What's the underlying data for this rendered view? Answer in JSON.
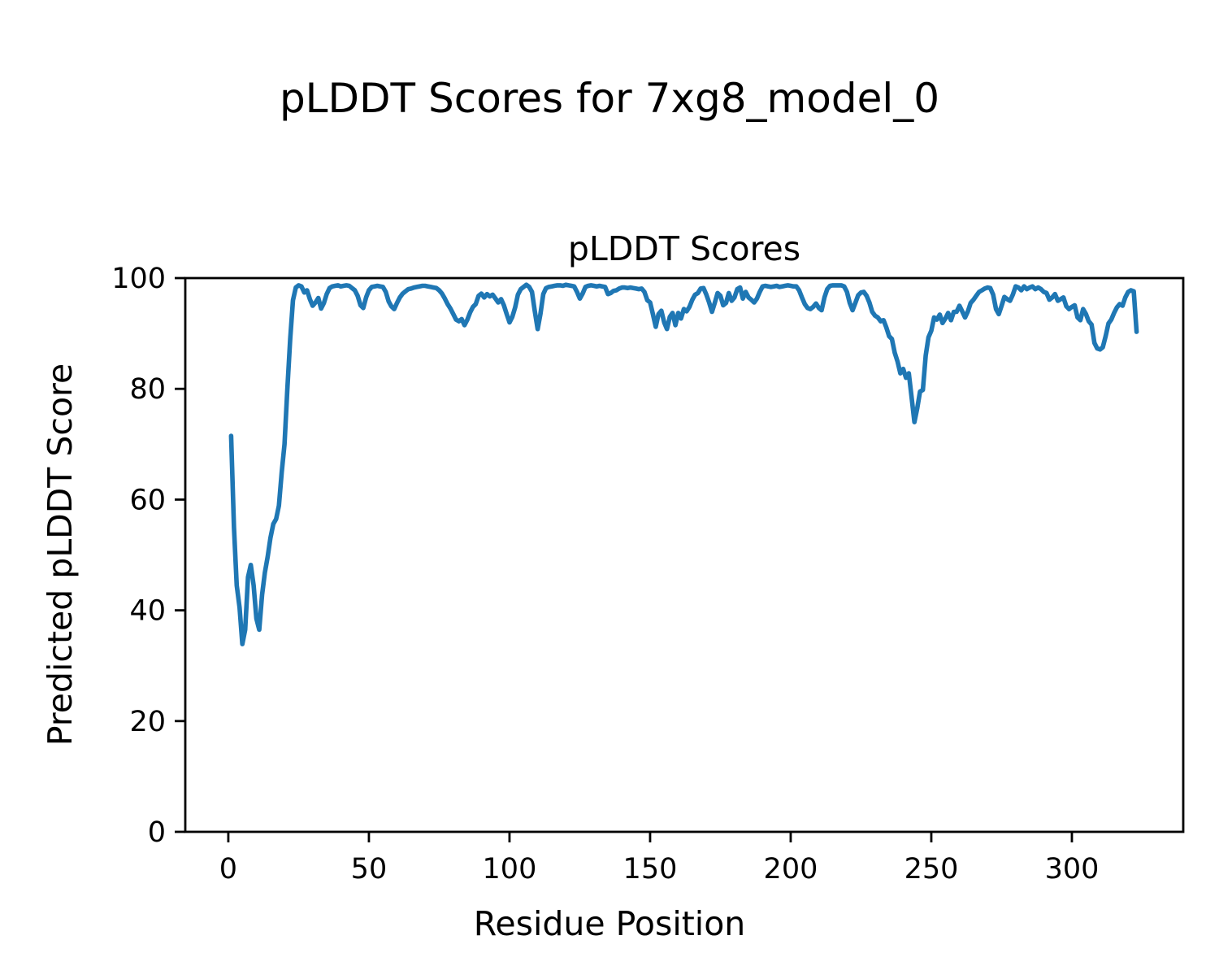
{
  "figure_title": "pLDDT Scores for 7xg8_model_0",
  "chart_data": {
    "type": "line",
    "title": "pLDDT Scores",
    "xlabel": "Residue Position",
    "ylabel": "Predicted pLDDT Score",
    "xlim": [
      -15.3,
      339.6
    ],
    "ylim": [
      0,
      100
    ],
    "xticks": [
      0,
      50,
      100,
      150,
      200,
      250,
      300
    ],
    "yticks": [
      0,
      20,
      40,
      60,
      80,
      100
    ],
    "grid": false,
    "legend": "none",
    "line_color": "#1f77b4",
    "series": [
      {
        "name": "pLDDT",
        "x_start": 1,
        "values": [
          71.5,
          55,
          44.5,
          40.5,
          33.9,
          36.5,
          46,
          48.2,
          44.5,
          38.5,
          36.5,
          42.8,
          46.8,
          49.7,
          53.1,
          55.6,
          56.5,
          58.9,
          65,
          70,
          80,
          89,
          96,
          98.3,
          98.7,
          98.5,
          97.4,
          97.8,
          96.2,
          95,
          95.6,
          96.4,
          94.5,
          95.5,
          97.1,
          98.2,
          98.5,
          98.6,
          98.7,
          98.5,
          98.6,
          98.7,
          98.6,
          98.2,
          97.8,
          96.8,
          95.1,
          94.6,
          96.5,
          97.8,
          98.4,
          98.5,
          98.6,
          98.5,
          98.4,
          97.5,
          95.8,
          94.9,
          94.4,
          95.5,
          96.5,
          97.2,
          97.6,
          98,
          98.1,
          98.3,
          98.4,
          98.5,
          98.6,
          98.6,
          98.5,
          98.4,
          98.3,
          98.2,
          97.8,
          97.2,
          96.3,
          95.3,
          94.5,
          93.5,
          92.5,
          92.2,
          92.6,
          91.5,
          92.5,
          93.8,
          94.8,
          95.3,
          96.8,
          97.2,
          96.5,
          97.1,
          96.7,
          97,
          96.3,
          95.6,
          96.2,
          95.1,
          93.5,
          92,
          93,
          94.7,
          97,
          98,
          98.4,
          98.8,
          98.4,
          97.5,
          94,
          90.8,
          93.5,
          97.1,
          98.2,
          98.4,
          98.5,
          98.6,
          98.7,
          98.7,
          98.6,
          98.8,
          98.7,
          98.6,
          98.5,
          97.5,
          96.3,
          97.2,
          98.4,
          98.6,
          98.7,
          98.6,
          98.5,
          98.6,
          98.5,
          98.4,
          97.1,
          97.3,
          97.7,
          97.8,
          98.1,
          98.3,
          98.3,
          98.2,
          98.3,
          98.2,
          98.1,
          98,
          98.1,
          97.5,
          96,
          95.6,
          93.5,
          91.2,
          93.5,
          94.1,
          92,
          90.8,
          93,
          93.7,
          91.5,
          93.7,
          92.7,
          94.4,
          94,
          94.8,
          96.1,
          97,
          97.3,
          98.1,
          98.2,
          97,
          95.6,
          93.9,
          95.5,
          97.3,
          96.8,
          95.1,
          95.5,
          97.3,
          95.9,
          96.5,
          98,
          98.3,
          96.3,
          97.5,
          96.5,
          96.1,
          95.6,
          96.3,
          97.5,
          98.5,
          98.6,
          98.5,
          98.4,
          98.5,
          98.6,
          98.4,
          98.5,
          98.6,
          98.7,
          98.6,
          98.5,
          98.5,
          97.8,
          96.5,
          95.3,
          94.6,
          94.4,
          94.8,
          95.4,
          94.6,
          94.2,
          96.5,
          98,
          98.6,
          98.7,
          98.7,
          98.7,
          98.7,
          98.5,
          97.5,
          95.5,
          94.2,
          95.5,
          96.9,
          97.4,
          97.5,
          96.8,
          95.6,
          93.9,
          93.2,
          92.9,
          92.2,
          92.4,
          91.1,
          89.5,
          89,
          86.5,
          84.9,
          82.8,
          83.6,
          82,
          82.8,
          78.4,
          74,
          76.5,
          79.5,
          79.8,
          86,
          89.3,
          90.5,
          92.9,
          92.5,
          93.4,
          91.9,
          92.7,
          93.7,
          92.4,
          93.9,
          93.9,
          95,
          94,
          92.9,
          94,
          95.5,
          96.1,
          96.8,
          97.5,
          97.8,
          98.1,
          98.3,
          98.2,
          97,
          94.4,
          93.5,
          95,
          96.6,
          96.2,
          95.9,
          97,
          98.5,
          98.3,
          97.8,
          98.5,
          98,
          98.3,
          98.5,
          98,
          98.3,
          98,
          97.5,
          97.3,
          96.1,
          96.5,
          97.1,
          95.9,
          96.2,
          96.5,
          94.9,
          94.4,
          94.8,
          95.1,
          92.9,
          92.4,
          94.4,
          93.5,
          92.2,
          91.6,
          88.3,
          87.3,
          87.1,
          87.5,
          89.5,
          91.8,
          92.5,
          93.7,
          94.7,
          95.3,
          95,
          96.5,
          97.5,
          97.8,
          97.6,
          90.3
        ]
      }
    ]
  }
}
